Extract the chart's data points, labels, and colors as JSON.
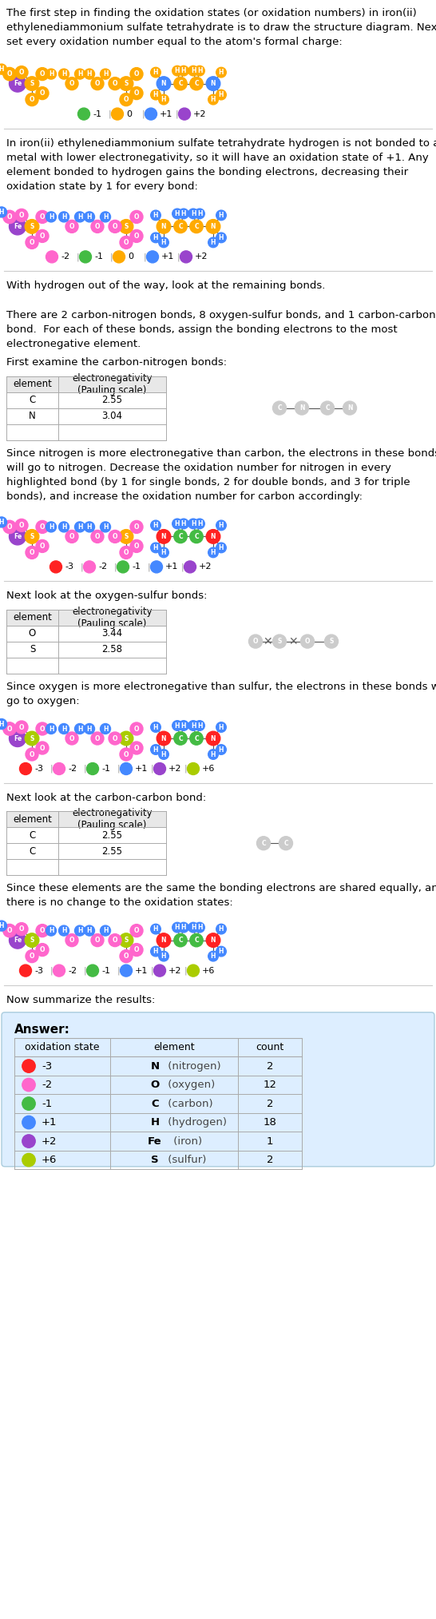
{
  "title_lines": [
    "The first step in finding the oxidation states (or oxidation numbers) in iron(ii)",
    "ethylenediammonium sulfate tetrahydrate is to draw the structure diagram. Next",
    "set every oxidation number equal to the atom's formal charge:"
  ],
  "section2_lines": [
    "In iron(ii) ethylenediammonium sulfate tetrahydrate hydrogen is not bonded to a",
    "metal with lower electronegativity, so it will have an oxidation state of +1. Any",
    "element bonded to hydrogen gains the bonding electrons, decreasing their",
    "oxidation state by 1 for every bond:"
  ],
  "section3_lines": [
    "With hydrogen out of the way, look at the remaining bonds.",
    "",
    "There are 2 carbon-nitrogen bonds, 8 oxygen-sulfur bonds, and 1 carbon-carbon",
    "bond.  For each of these bonds, assign the bonding electrons to the most",
    "electronegative element."
  ],
  "cn_header": "First examine the carbon-nitrogen bonds:",
  "cn_table_headers": [
    "element",
    "electronegativity\n(Pauling scale)"
  ],
  "cn_table_rows": [
    [
      "C",
      "2.55"
    ],
    [
      "N",
      "3.04"
    ],
    [
      "",
      ""
    ]
  ],
  "cn_note_lines": [
    "Since nitrogen is more electronegative than carbon, the electrons in these bonds",
    "will go to nitrogen. Decrease the oxidation number for nitrogen in every",
    "highlighted bond (by 1 for single bonds, 2 for double bonds, and 3 for triple",
    "bonds), and increase the oxidation number for carbon accordingly:"
  ],
  "os_header": "Next look at the oxygen-sulfur bonds:",
  "os_table_headers": [
    "element",
    "electronegativity\n(Pauling scale)"
  ],
  "os_table_rows": [
    [
      "O",
      "3.44"
    ],
    [
      "S",
      "2.58"
    ],
    [
      "",
      ""
    ]
  ],
  "os_note_lines": [
    "Since oxygen is more electronegative than sulfur, the electrons in these bonds will",
    "go to oxygen:"
  ],
  "cc_header": "Next look at the carbon-carbon bond:",
  "cc_table_headers": [
    "element",
    "electronegativity\n(Pauling scale)"
  ],
  "cc_table_rows": [
    [
      "C",
      "2.55"
    ],
    [
      "C",
      "2.55"
    ],
    [
      "",
      ""
    ]
  ],
  "cc_note_lines": [
    "Since these elements are the same the bonding electrons are shared equally, and",
    "there is no change to the oxidation states:"
  ],
  "summary_line": "Now summarize the results:",
  "answer_label": "Answer:",
  "answer_headers": [
    "oxidation state",
    "element",
    "count"
  ],
  "answer_rows": [
    [
      "-3",
      "N (nitrogen)",
      "2",
      "#ff2222"
    ],
    [
      "-2",
      "O (oxygen)",
      "12",
      "#ff66cc"
    ],
    [
      "-1",
      "C (carbon)",
      "2",
      "#44bb44"
    ],
    [
      "+1",
      "H (hydrogen)",
      "18",
      "#4488ff"
    ],
    [
      "+2",
      "Fe (iron)",
      "1",
      "#9944cc"
    ],
    [
      "+6",
      "S (sulfur)",
      "2",
      "#aacc00"
    ]
  ],
  "colors": {
    "orange": "#ffaa00",
    "green": "#44bb44",
    "blue": "#4488ff",
    "purple": "#9944cc",
    "pink": "#ff66cc",
    "red": "#ff2222",
    "ylgreen": "#aacc00",
    "white": "#ffffff",
    "sep": "#cccccc",
    "answer_bg": "#ddeeff",
    "table_header_bg": "#e8e8e8"
  },
  "legend_set1": [
    {
      "color": "#44bb44",
      "label": "-1"
    },
    {
      "color": "#ffaa00",
      "label": "0"
    },
    {
      "color": "#4488ff",
      "label": "+1"
    },
    {
      "color": "#9944cc",
      "label": "+2"
    }
  ],
  "legend_set2": [
    {
      "color": "#ff66cc",
      "label": "-2"
    },
    {
      "color": "#44bb44",
      "label": "-1"
    },
    {
      "color": "#ffaa00",
      "label": "0"
    },
    {
      "color": "#4488ff",
      "label": "+1"
    },
    {
      "color": "#9944cc",
      "label": "+2"
    }
  ],
  "legend_set3": [
    {
      "color": "#ff2222",
      "label": "-3"
    },
    {
      "color": "#ff66cc",
      "label": "-2"
    },
    {
      "color": "#44bb44",
      "label": "-1"
    },
    {
      "color": "#4488ff",
      "label": "+1"
    },
    {
      "color": "#9944cc",
      "label": "+2"
    },
    {
      "color": "#aacc00",
      "label": "+6"
    }
  ],
  "legend_set4": [
    {
      "color": "#ff2222",
      "label": "-3"
    },
    {
      "color": "#ff66cc",
      "label": "-2"
    },
    {
      "color": "#44bb44",
      "label": "-1"
    },
    {
      "color": "#4488ff",
      "label": "+1"
    },
    {
      "color": "#9944cc",
      "label": "+2"
    },
    {
      "color": "#aacc00",
      "label": "+6"
    }
  ]
}
